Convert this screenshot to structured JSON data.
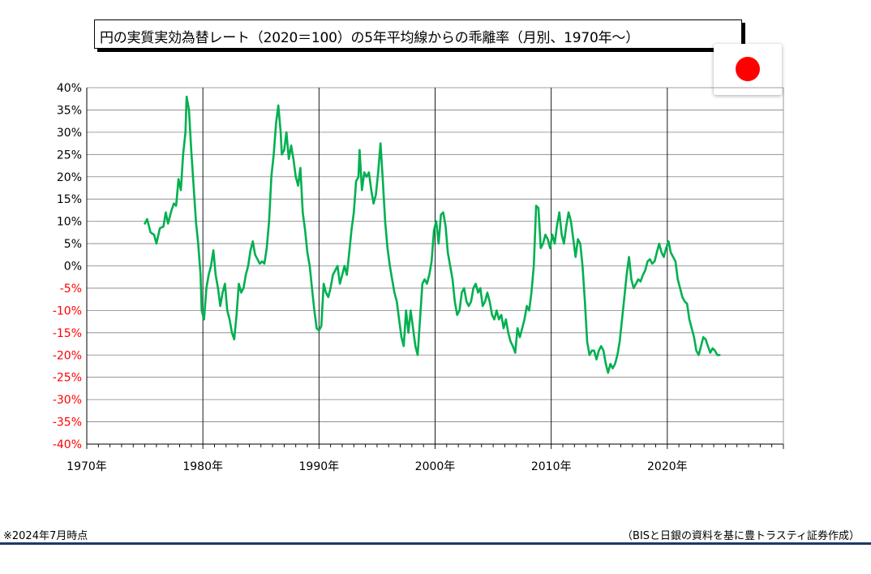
{
  "title": "円の実質実効為替レート（2020＝100）の5年平均線からの乖離率（月別、1970年～）",
  "flag": {
    "name": "japan-flag",
    "sun_color": "#ff0000"
  },
  "footnote_left": "※2024年7月時点",
  "footnote_right": "（BISと日銀の資料を基に豊トラスティ証券作成）",
  "chart_data": {
    "type": "line",
    "title": "円の実質実効為替レート（2020＝100）の5年平均線からの乖離率（月別、1970年～）",
    "xlabel": "",
    "ylabel": "",
    "xlim": [
      1970,
      2030
    ],
    "ylim": [
      -40,
      40
    ],
    "x_ticks": [
      "1970年",
      "1980年",
      "1990年",
      "2000年",
      "2010年",
      "2020年"
    ],
    "x_tick_values": [
      1970,
      1980,
      1990,
      2000,
      2010,
      2020
    ],
    "y_ticks": [
      "40%",
      "35%",
      "30%",
      "25%",
      "20%",
      "15%",
      "10%",
      "5%",
      "0%",
      "-5%",
      "-10%",
      "-15%",
      "-20%",
      "-25%",
      "-30%",
      "-35%",
      "-40%"
    ],
    "y_tick_values": [
      40,
      35,
      30,
      25,
      20,
      15,
      10,
      5,
      0,
      -5,
      -10,
      -15,
      -20,
      -25,
      -30,
      -35,
      -40
    ],
    "negative_tick_color": "#ff0000",
    "grid": true,
    "legend": "none",
    "series": [
      {
        "color": "#00b050",
        "points": [
          [
            1975.0,
            9.5
          ],
          [
            1975.2,
            10.5
          ],
          [
            1975.5,
            7.5
          ],
          [
            1975.8,
            7.0
          ],
          [
            1976.0,
            5.0
          ],
          [
            1976.3,
            8.5
          ],
          [
            1976.6,
            8.8
          ],
          [
            1976.8,
            12.0
          ],
          [
            1977.0,
            9.5
          ],
          [
            1977.3,
            12.5
          ],
          [
            1977.5,
            14.0
          ],
          [
            1977.7,
            13.5
          ],
          [
            1977.9,
            19.5
          ],
          [
            1978.1,
            17.0
          ],
          [
            1978.3,
            25.0
          ],
          [
            1978.5,
            30.0
          ],
          [
            1978.6,
            38.0
          ],
          [
            1978.8,
            35.0
          ],
          [
            1979.0,
            26.0
          ],
          [
            1979.2,
            18.0
          ],
          [
            1979.4,
            10.0
          ],
          [
            1979.6,
            5.0
          ],
          [
            1979.8,
            -2.0
          ],
          [
            1979.9,
            -10.0
          ],
          [
            1980.1,
            -12.0
          ],
          [
            1980.3,
            -5.0
          ],
          [
            1980.5,
            -2.0
          ],
          [
            1980.7,
            0.0
          ],
          [
            1980.9,
            3.5
          ],
          [
            1981.1,
            -2.0
          ],
          [
            1981.3,
            -5.0
          ],
          [
            1981.5,
            -9.0
          ],
          [
            1981.7,
            -6.0
          ],
          [
            1981.9,
            -4.0
          ],
          [
            1982.1,
            -10.0
          ],
          [
            1982.3,
            -12.0
          ],
          [
            1982.5,
            -15.0
          ],
          [
            1982.7,
            -16.5
          ],
          [
            1982.9,
            -11.0
          ],
          [
            1983.1,
            -4.0
          ],
          [
            1983.3,
            -6.0
          ],
          [
            1983.5,
            -5.0
          ],
          [
            1983.7,
            -2.0
          ],
          [
            1983.9,
            0.0
          ],
          [
            1984.1,
            3.5
          ],
          [
            1984.3,
            5.5
          ],
          [
            1984.5,
            2.5
          ],
          [
            1984.7,
            1.5
          ],
          [
            1984.9,
            0.5
          ],
          [
            1985.1,
            1.0
          ],
          [
            1985.3,
            0.5
          ],
          [
            1985.5,
            4.0
          ],
          [
            1985.7,
            10.0
          ],
          [
            1985.9,
            20.0
          ],
          [
            1986.1,
            25.0
          ],
          [
            1986.3,
            32.0
          ],
          [
            1986.5,
            36.0
          ],
          [
            1986.7,
            30.0
          ],
          [
            1986.8,
            25.0
          ],
          [
            1987.0,
            26.0
          ],
          [
            1987.2,
            30.0
          ],
          [
            1987.4,
            24.0
          ],
          [
            1987.6,
            27.0
          ],
          [
            1987.8,
            24.0
          ],
          [
            1988.0,
            20.0
          ],
          [
            1988.2,
            18.0
          ],
          [
            1988.4,
            22.0
          ],
          [
            1988.6,
            12.0
          ],
          [
            1988.8,
            8.0
          ],
          [
            1989.0,
            3.0
          ],
          [
            1989.2,
            0.0
          ],
          [
            1989.4,
            -5.0
          ],
          [
            1989.6,
            -10.0
          ],
          [
            1989.8,
            -14.0
          ],
          [
            1990.0,
            -14.5
          ],
          [
            1990.2,
            -13.5
          ],
          [
            1990.4,
            -4.0
          ],
          [
            1990.6,
            -6.0
          ],
          [
            1990.8,
            -7.0
          ],
          [
            1991.0,
            -5.0
          ],
          [
            1991.2,
            -2.0
          ],
          [
            1991.4,
            -1.0
          ],
          [
            1991.6,
            0.0
          ],
          [
            1991.8,
            -4.0
          ],
          [
            1992.0,
            -2.0
          ],
          [
            1992.2,
            0.0
          ],
          [
            1992.4,
            -2.0
          ],
          [
            1992.6,
            3.0
          ],
          [
            1992.8,
            8.0
          ],
          [
            1993.0,
            12.0
          ],
          [
            1993.2,
            19.0
          ],
          [
            1993.4,
            20.0
          ],
          [
            1993.5,
            26.0
          ],
          [
            1993.7,
            17.0
          ],
          [
            1993.9,
            21.0
          ],
          [
            1994.1,
            20.0
          ],
          [
            1994.3,
            21.0
          ],
          [
            1994.5,
            17.0
          ],
          [
            1994.7,
            14.0
          ],
          [
            1994.9,
            16.0
          ],
          [
            1995.1,
            21.0
          ],
          [
            1995.3,
            27.5
          ],
          [
            1995.5,
            19.0
          ],
          [
            1995.7,
            10.0
          ],
          [
            1995.9,
            4.0
          ],
          [
            1996.1,
            0.0
          ],
          [
            1996.3,
            -3.0
          ],
          [
            1996.5,
            -6.0
          ],
          [
            1996.7,
            -8.0
          ],
          [
            1996.9,
            -12.0
          ],
          [
            1997.1,
            -16.0
          ],
          [
            1997.3,
            -18.0
          ],
          [
            1997.5,
            -10.0
          ],
          [
            1997.7,
            -15.0
          ],
          [
            1997.9,
            -10.0
          ],
          [
            1998.1,
            -14.0
          ],
          [
            1998.3,
            -18.0
          ],
          [
            1998.5,
            -20.0
          ],
          [
            1998.7,
            -12.0
          ],
          [
            1998.9,
            -4.0
          ],
          [
            1999.1,
            -3.0
          ],
          [
            1999.3,
            -4.0
          ],
          [
            1999.5,
            -2.0
          ],
          [
            1999.7,
            1.0
          ],
          [
            1999.9,
            8.0
          ],
          [
            2000.1,
            10.0
          ],
          [
            2000.3,
            5.0
          ],
          [
            2000.5,
            11.5
          ],
          [
            2000.7,
            12.0
          ],
          [
            2000.9,
            9.0
          ],
          [
            2001.1,
            3.0
          ],
          [
            2001.3,
            0.0
          ],
          [
            2001.5,
            -3.0
          ],
          [
            2001.7,
            -8.0
          ],
          [
            2001.9,
            -11.0
          ],
          [
            2002.1,
            -10.0
          ],
          [
            2002.3,
            -6.0
          ],
          [
            2002.5,
            -5.0
          ],
          [
            2002.7,
            -8.0
          ],
          [
            2002.9,
            -9.0
          ],
          [
            2003.1,
            -8.0
          ],
          [
            2003.3,
            -5.0
          ],
          [
            2003.5,
            -4.0
          ],
          [
            2003.7,
            -6.0
          ],
          [
            2003.9,
            -5.0
          ],
          [
            2004.1,
            -9.0
          ],
          [
            2004.3,
            -8.0
          ],
          [
            2004.5,
            -6.0
          ],
          [
            2004.7,
            -8.0
          ],
          [
            2004.9,
            -11.0
          ],
          [
            2005.1,
            -12.0
          ],
          [
            2005.3,
            -10.0
          ],
          [
            2005.5,
            -12.0
          ],
          [
            2005.7,
            -11.0
          ],
          [
            2005.9,
            -14.0
          ],
          [
            2006.1,
            -12.0
          ],
          [
            2006.3,
            -15.0
          ],
          [
            2006.5,
            -17.0
          ],
          [
            2006.7,
            -18.0
          ],
          [
            2006.9,
            -19.5
          ],
          [
            2007.1,
            -14.0
          ],
          [
            2007.3,
            -16.0
          ],
          [
            2007.5,
            -14.0
          ],
          [
            2007.7,
            -12.0
          ],
          [
            2007.9,
            -9.0
          ],
          [
            2008.1,
            -10.0
          ],
          [
            2008.3,
            -6.0
          ],
          [
            2008.5,
            0.0
          ],
          [
            2008.7,
            13.5
          ],
          [
            2008.9,
            13.0
          ],
          [
            2009.1,
            4.0
          ],
          [
            2009.3,
            5.0
          ],
          [
            2009.5,
            7.0
          ],
          [
            2009.7,
            6.0
          ],
          [
            2009.9,
            4.0
          ],
          [
            2010.1,
            7.0
          ],
          [
            2010.3,
            5.0
          ],
          [
            2010.5,
            9.0
          ],
          [
            2010.7,
            12.0
          ],
          [
            2010.9,
            7.0
          ],
          [
            2011.1,
            5.0
          ],
          [
            2011.3,
            9.0
          ],
          [
            2011.5,
            12.0
          ],
          [
            2011.7,
            10.0
          ],
          [
            2011.9,
            6.0
          ],
          [
            2012.1,
            2.0
          ],
          [
            2012.3,
            6.0
          ],
          [
            2012.5,
            5.0
          ],
          [
            2012.7,
            0.0
          ],
          [
            2012.9,
            -8.0
          ],
          [
            2013.1,
            -17.0
          ],
          [
            2013.3,
            -20.0
          ],
          [
            2013.5,
            -19.0
          ],
          [
            2013.7,
            -19.0
          ],
          [
            2013.9,
            -21.0
          ],
          [
            2014.1,
            -19.0
          ],
          [
            2014.3,
            -18.0
          ],
          [
            2014.5,
            -19.0
          ],
          [
            2014.7,
            -22.0
          ],
          [
            2014.9,
            -24.0
          ],
          [
            2015.1,
            -22.0
          ],
          [
            2015.3,
            -23.0
          ],
          [
            2015.5,
            -22.0
          ],
          [
            2015.7,
            -20.0
          ],
          [
            2015.9,
            -17.0
          ],
          [
            2016.1,
            -12.0
          ],
          [
            2016.3,
            -7.0
          ],
          [
            2016.5,
            -2.0
          ],
          [
            2016.7,
            2.0
          ],
          [
            2016.9,
            -3.0
          ],
          [
            2017.1,
            -5.0
          ],
          [
            2017.3,
            -4.0
          ],
          [
            2017.5,
            -3.0
          ],
          [
            2017.7,
            -3.5
          ],
          [
            2017.9,
            -2.0
          ],
          [
            2018.1,
            -1.0
          ],
          [
            2018.3,
            1.0
          ],
          [
            2018.5,
            1.5
          ],
          [
            2018.7,
            0.5
          ],
          [
            2018.9,
            1.0
          ],
          [
            2019.1,
            3.0
          ],
          [
            2019.3,
            5.0
          ],
          [
            2019.5,
            3.0
          ],
          [
            2019.7,
            2.0
          ],
          [
            2019.9,
            4.0
          ],
          [
            2020.1,
            5.5
          ],
          [
            2020.3,
            3.0
          ],
          [
            2020.5,
            2.0
          ],
          [
            2020.7,
            1.0
          ],
          [
            2020.9,
            -3.0
          ],
          [
            2021.1,
            -5.0
          ],
          [
            2021.3,
            -7.0
          ],
          [
            2021.5,
            -8.0
          ],
          [
            2021.7,
            -8.5
          ],
          [
            2021.9,
            -12.0
          ],
          [
            2022.1,
            -14.0
          ],
          [
            2022.3,
            -16.0
          ],
          [
            2022.5,
            -19.0
          ],
          [
            2022.7,
            -20.0
          ],
          [
            2022.9,
            -18.0
          ],
          [
            2023.1,
            -16.0
          ],
          [
            2023.3,
            -16.5
          ],
          [
            2023.5,
            -18.0
          ],
          [
            2023.7,
            -19.5
          ],
          [
            2023.9,
            -18.5
          ],
          [
            2024.1,
            -19.0
          ],
          [
            2024.3,
            -20.0
          ],
          [
            2024.5,
            -20.0
          ]
        ]
      }
    ]
  }
}
